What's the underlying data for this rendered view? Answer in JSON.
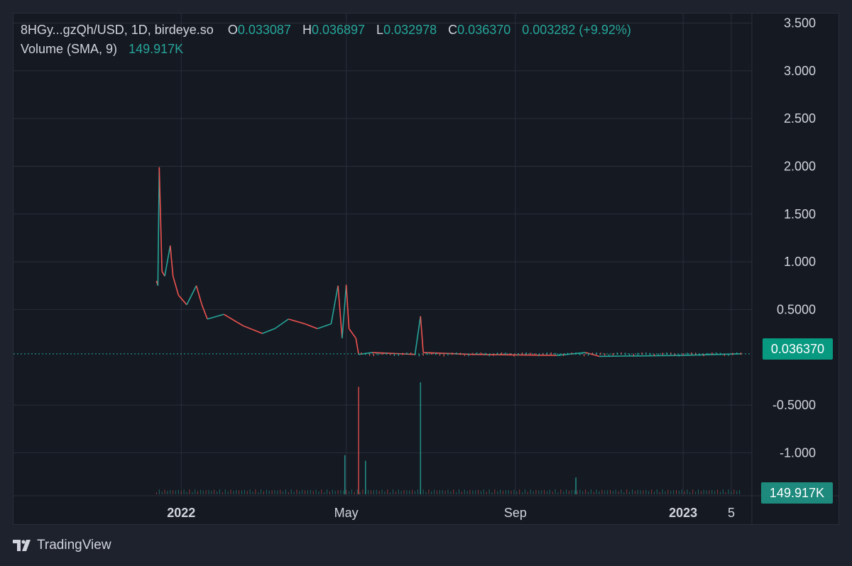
{
  "legend": {
    "symbol": "8HGy...gzQh/USD, 1D, birdeye.so",
    "o_label": "O",
    "o_value": "0.033087",
    "h_label": "H",
    "h_value": "0.036897",
    "l_label": "L",
    "l_value": "0.032978",
    "c_label": "C",
    "c_value": "0.036370",
    "change": "0.003282 (+9.92%)",
    "volume_label": "Volume (SMA, 9)",
    "volume_value": "149.917K"
  },
  "price_tag": "0.036370",
  "volume_tag": "149.917K",
  "branding": "TradingView",
  "colors": {
    "up": "#26a69a",
    "down": "#ef5350",
    "tag": "#089981",
    "grid": "#2a2e39",
    "text": "#d1d4dc"
  },
  "chart_data": {
    "type": "candlestick",
    "y_ticks": [
      "3.500",
      "3.000",
      "2.500",
      "2.000",
      "1.500",
      "1.000",
      "0.5000",
      "-0.5000",
      "-1.000"
    ],
    "y_tick_values": [
      3.5,
      3.0,
      2.5,
      2.0,
      1.5,
      1.0,
      0.5,
      -0.5,
      -1.0
    ],
    "x_ticks": [
      {
        "label": "2022",
        "date": "2022-01-01",
        "bold": true
      },
      {
        "label": "May",
        "date": "2022-05-01",
        "bold": false
      },
      {
        "label": "Sep",
        "date": "2022-09-01",
        "bold": false
      },
      {
        "label": "2023",
        "date": "2023-01-01",
        "bold": true
      },
      {
        "label": "5",
        "date": "2023-02-05",
        "bold": false
      }
    ],
    "ylim": [
      -1.45,
      3.6
    ],
    "xlim": [
      "2021-09-01",
      "2023-02-20"
    ],
    "last_close": 0.03637,
    "price_series": [
      {
        "date": "2021-12-14",
        "value": 0.8
      },
      {
        "date": "2021-12-15",
        "value": 0.75
      },
      {
        "date": "2021-12-16",
        "value": 1.99
      },
      {
        "date": "2021-12-18",
        "value": 0.9
      },
      {
        "date": "2021-12-20",
        "value": 0.85
      },
      {
        "date": "2021-12-24",
        "value": 1.17
      },
      {
        "date": "2021-12-26",
        "value": 0.85
      },
      {
        "date": "2021-12-30",
        "value": 0.65
      },
      {
        "date": "2022-01-05",
        "value": 0.55
      },
      {
        "date": "2022-01-12",
        "value": 0.75
      },
      {
        "date": "2022-01-16",
        "value": 0.55
      },
      {
        "date": "2022-01-20",
        "value": 0.4
      },
      {
        "date": "2022-02-01",
        "value": 0.45
      },
      {
        "date": "2022-02-15",
        "value": 0.33
      },
      {
        "date": "2022-03-01",
        "value": 0.25
      },
      {
        "date": "2022-03-10",
        "value": 0.3
      },
      {
        "date": "2022-03-20",
        "value": 0.4
      },
      {
        "date": "2022-04-01",
        "value": 0.35
      },
      {
        "date": "2022-04-10",
        "value": 0.3
      },
      {
        "date": "2022-04-20",
        "value": 0.35
      },
      {
        "date": "2022-04-25",
        "value": 0.75
      },
      {
        "date": "2022-04-28",
        "value": 0.2
      },
      {
        "date": "2022-05-01",
        "value": 0.76
      },
      {
        "date": "2022-05-03",
        "value": 0.3
      },
      {
        "date": "2022-05-08",
        "value": 0.2
      },
      {
        "date": "2022-05-10",
        "value": 0.03
      },
      {
        "date": "2022-05-20",
        "value": 0.05
      },
      {
        "date": "2022-06-20",
        "value": 0.03
      },
      {
        "date": "2022-06-24",
        "value": 0.43
      },
      {
        "date": "2022-06-26",
        "value": 0.05
      },
      {
        "date": "2022-08-01",
        "value": 0.03
      },
      {
        "date": "2022-10-01",
        "value": 0.02
      },
      {
        "date": "2022-10-22",
        "value": 0.05
      },
      {
        "date": "2022-11-01",
        "value": 0.01
      },
      {
        "date": "2023-01-01",
        "value": 0.02
      },
      {
        "date": "2023-02-12",
        "value": 0.03637
      }
    ],
    "volume_spikes": [
      {
        "date": "2022-05-10",
        "level": 0.96,
        "color": "down"
      },
      {
        "date": "2022-06-24",
        "level": 1.0,
        "color": "up"
      },
      {
        "date": "2022-05-15",
        "level": 0.3,
        "color": "up"
      },
      {
        "date": "2022-04-30",
        "level": 0.35,
        "color": "up"
      },
      {
        "date": "2022-10-15",
        "level": 0.15,
        "color": "up"
      }
    ]
  }
}
